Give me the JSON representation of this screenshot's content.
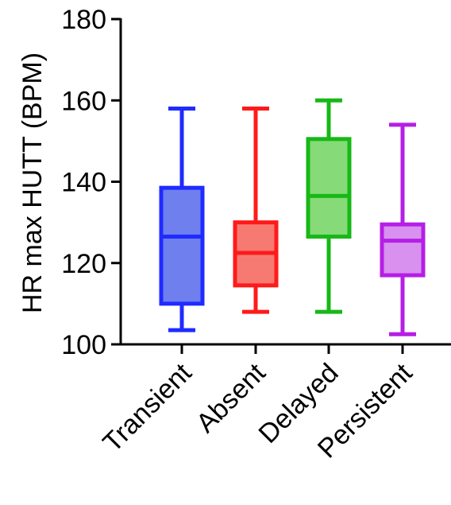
{
  "chart_data": {
    "type": "box",
    "ylabel": "HR max HUTT (BPM)",
    "ylim": [
      100,
      180
    ],
    "yticks": [
      100,
      120,
      140,
      160,
      180
    ],
    "categories": [
      "Transient",
      "Absent",
      "Delayed",
      "Persistent"
    ],
    "boxes": [
      {
        "category": "Transient",
        "min": 103.5,
        "q1": 110,
        "median": 126.5,
        "q3": 138.5,
        "max": 158,
        "color": "#1f2bff",
        "fill": "#6f7fee"
      },
      {
        "category": "Absent",
        "min": 108,
        "q1": 114.5,
        "median": 122.5,
        "q3": 130,
        "max": 158,
        "color": "#ff1a1a",
        "fill": "#f77a72"
      },
      {
        "category": "Delayed",
        "min": 108,
        "q1": 126.5,
        "median": 136.5,
        "q3": 150.5,
        "max": 160,
        "color": "#17b817",
        "fill": "#86da77"
      },
      {
        "category": "Persistent",
        "min": 102.5,
        "q1": 117,
        "median": 125.5,
        "q3": 129.5,
        "max": 154,
        "color": "#b51fe6",
        "fill": "#d991f0"
      }
    ]
  }
}
